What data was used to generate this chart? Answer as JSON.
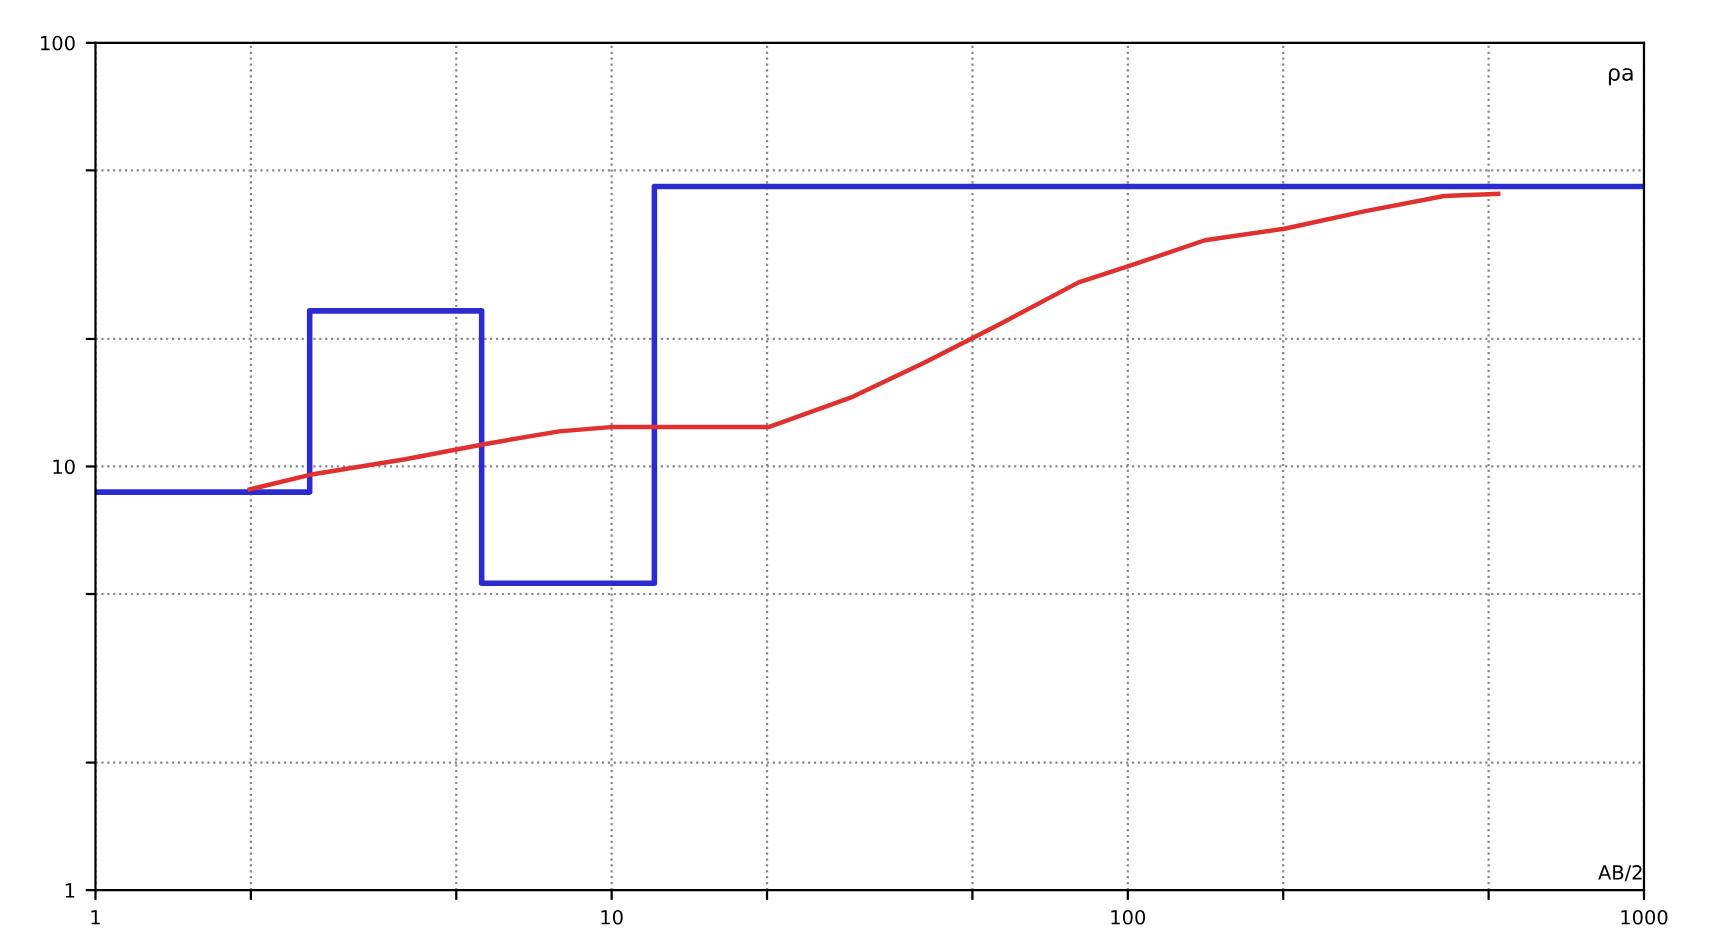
{
  "chart_data": {
    "type": "line",
    "xlabel": "AB/2",
    "ylabel": "ρa",
    "log": "xy",
    "xlim": [
      1,
      1000
    ],
    "ylim": [
      1,
      100
    ],
    "xticks": [
      1,
      {
        "value": 2,
        "label": null
      },
      {
        "value": 5,
        "label": null
      },
      10,
      {
        "value": 20,
        "label": null
      },
      {
        "value": 50,
        "label": null
      },
      100,
      {
        "value": 200,
        "label": null
      },
      {
        "value": 500,
        "label": null
      },
      1000
    ],
    "yticks": [
      1,
      {
        "value": 2,
        "label": null
      },
      {
        "value": 5,
        "label": null
      },
      10,
      {
        "value": 20,
        "label": null
      },
      {
        "value": 50,
        "label": null
      },
      100
    ],
    "grid": true,
    "series": [
      {
        "type": "step",
        "color": "#2b2bd0",
        "x": [
          1,
          2.6,
          5.6,
          12.1,
          1000
        ],
        "values": [
          8.7,
          23.3,
          5.3,
          45.8,
          45.8
        ]
      },
      {
        "color": "#e03030",
        "x": [
          1.99,
          2.64,
          3.98,
          5.69,
          7.91,
          10.1,
          15.2,
          20.2,
          29.3,
          40.4,
          56.2,
          80.3,
          102,
          141,
          201,
          287,
          410,
          522
        ],
        "values": [
          8.83,
          9.59,
          10.4,
          11.3,
          12.1,
          12.4,
          12.4,
          12.4,
          14.6,
          17.6,
          21.6,
          27.2,
          29.9,
          34.2,
          36.4,
          40.0,
          43.5,
          44.0
        ]
      }
    ]
  }
}
